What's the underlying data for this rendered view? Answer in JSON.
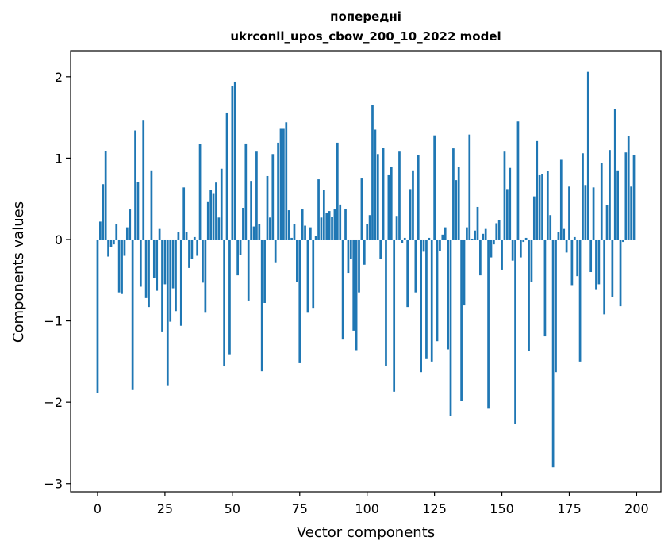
{
  "chart_data": {
    "type": "bar",
    "title_line1": "попередні",
    "title_line2": "ukrconll_upos_cbow_200_10_2022 model",
    "xlabel": "Vector components",
    "ylabel": "Components values",
    "xlim": [
      -10,
      209
    ],
    "ylim": [
      -3.1,
      2.32
    ],
    "xticks": [
      0,
      25,
      50,
      75,
      100,
      125,
      150,
      175,
      200
    ],
    "xtick_labels": [
      "0",
      "25",
      "50",
      "75",
      "100",
      "125",
      "150",
      "175",
      "200"
    ],
    "yticks": [
      -3,
      -2,
      -1,
      0,
      1,
      2
    ],
    "ytick_labels": [
      "−3",
      "−2",
      "−1",
      "0",
      "1",
      "2"
    ],
    "grid": false,
    "bar_color": "#1f77b4",
    "x": [
      0,
      1,
      2,
      3,
      4,
      5,
      6,
      7,
      8,
      9,
      10,
      11,
      12,
      13,
      14,
      15,
      16,
      17,
      18,
      19,
      20,
      21,
      22,
      23,
      24,
      25,
      26,
      27,
      28,
      29,
      30,
      31,
      32,
      33,
      34,
      35,
      36,
      37,
      38,
      39,
      40,
      41,
      42,
      43,
      44,
      45,
      46,
      47,
      48,
      49,
      50,
      51,
      52,
      53,
      54,
      55,
      56,
      57,
      58,
      59,
      60,
      61,
      62,
      63,
      64,
      65,
      66,
      67,
      68,
      69,
      70,
      71,
      72,
      73,
      74,
      75,
      76,
      77,
      78,
      79,
      80,
      81,
      82,
      83,
      84,
      85,
      86,
      87,
      88,
      89,
      90,
      91,
      92,
      93,
      94,
      95,
      96,
      97,
      98,
      99,
      100,
      101,
      102,
      103,
      104,
      105,
      106,
      107,
      108,
      109,
      110,
      111,
      112,
      113,
      114,
      115,
      116,
      117,
      118,
      119,
      120,
      121,
      122,
      123,
      124,
      125,
      126,
      127,
      128,
      129,
      130,
      131,
      132,
      133,
      134,
      135,
      136,
      137,
      138,
      139,
      140,
      141,
      142,
      143,
      144,
      145,
      146,
      147,
      148,
      149,
      150,
      151,
      152,
      153,
      154,
      155,
      156,
      157,
      158,
      159,
      160,
      161,
      162,
      163,
      164,
      165,
      166,
      167,
      168,
      169,
      170,
      171,
      172,
      173,
      174,
      175,
      176,
      177,
      178,
      179,
      180,
      181,
      182,
      183,
      184,
      185,
      186,
      187,
      188,
      189,
      190,
      191,
      192,
      193,
      194,
      195,
      196,
      197,
      198,
      199
    ],
    "values": [
      -1.89,
      0.22,
      0.68,
      1.09,
      -0.21,
      -0.09,
      -0.06,
      0.19,
      -0.65,
      -0.67,
      -0.2,
      0.15,
      0.37,
      -1.85,
      1.34,
      0.71,
      -0.58,
      1.47,
      -0.72,
      -0.83,
      0.85,
      -0.47,
      -0.63,
      0.13,
      -1.13,
      -0.55,
      -1.8,
      -1.01,
      -0.6,
      -0.88,
      0.09,
      -1.06,
      0.64,
      0.09,
      -0.35,
      -0.24,
      0.03,
      -0.2,
      1.17,
      -0.53,
      -0.9,
      0.46,
      0.61,
      0.57,
      0.7,
      0.27,
      0.87,
      -1.56,
      1.56,
      -1.41,
      1.89,
      1.94,
      -0.44,
      -0.19,
      0.39,
      1.18,
      -0.75,
      0.72,
      0.16,
      1.08,
      0.19,
      -1.62,
      -0.78,
      0.78,
      0.27,
      1.05,
      -0.28,
      1.19,
      1.36,
      1.36,
      1.44,
      0.36,
      0.02,
      0.19,
      -0.52,
      -1.52,
      0.37,
      0.17,
      -0.9,
      0.15,
      -0.84,
      0.04,
      0.74,
      0.27,
      0.61,
      0.33,
      0.35,
      0.28,
      0.37,
      1.19,
      0.43,
      -1.23,
      0.38,
      -0.41,
      -0.24,
      -1.12,
      -1.36,
      -0.65,
      0.75,
      -0.31,
      0.19,
      0.3,
      1.65,
      1.35,
      1.05,
      -0.24,
      1.13,
      -1.55,
      0.79,
      0.89,
      -1.87,
      0.29,
      1.08,
      -0.04,
      0.02,
      -0.83,
      0.62,
      0.85,
      -0.65,
      1.04,
      -1.63,
      -0.15,
      -1.47,
      0.02,
      -1.5,
      1.28,
      -1.25,
      -0.14,
      0.06,
      0.15,
      -1.35,
      -2.17,
      1.12,
      0.73,
      0.89,
      -1.98,
      -0.81,
      0.15,
      1.29,
      0.01,
      0.11,
      0.4,
      -0.44,
      0.07,
      0.13,
      -2.08,
      -0.22,
      -0.06,
      0.2,
      0.24,
      -0.37,
      1.08,
      0.62,
      0.88,
      -0.26,
      -2.27,
      1.45,
      -0.22,
      -0.03,
      0.02,
      -1.37,
      -0.52,
      0.53,
      1.21,
      0.79,
      0.8,
      -1.19,
      0.84,
      0.3,
      -2.8,
      -1.63,
      0.09,
      0.98,
      0.13,
      -0.16,
      0.65,
      -0.56,
      0.03,
      -0.45,
      -1.5,
      1.06,
      0.67,
      2.06,
      -0.4,
      0.64,
      -0.62,
      -0.55,
      0.94,
      -0.92,
      0.42,
      1.1,
      -0.71,
      1.6,
      0.85,
      -0.82,
      -0.03,
      1.07,
      1.27,
      0.65,
      1.04
    ]
  }
}
